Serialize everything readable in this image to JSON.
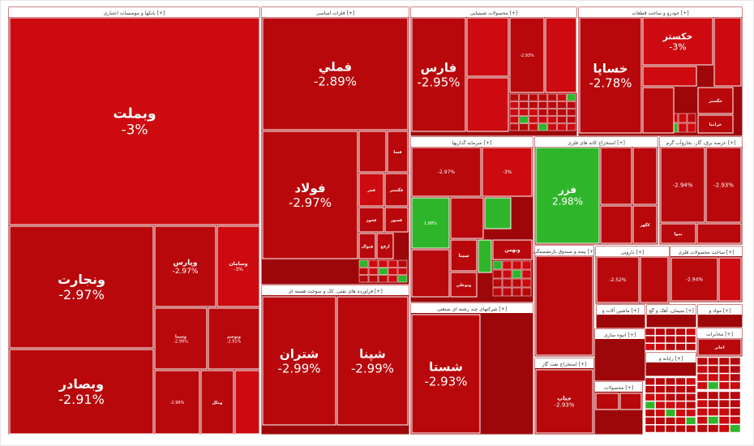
{
  "chart_data": {
    "type": "treemap",
    "colors": {
      "negative": "#cc0a0f",
      "negative_dark": "#b8080c",
      "positive": "#2fb52a",
      "header_bg": "#ffffff",
      "border": "#ffffff"
    },
    "groups": [
      {
        "name": "بانکها و موسسات اعتباری",
        "cells": [
          {
            "label": "وبملت",
            "value": "-3%",
            "change": -3.0
          },
          {
            "label": "ونجارت",
            "value": "-2.97%",
            "change": -2.97
          },
          {
            "label": "وبصادر",
            "value": "-2.91%",
            "change": -2.91
          },
          {
            "label": "وپارس",
            "value": "-2.97%",
            "change": -2.97
          },
          {
            "label": "وسامان",
            "value": "-3%",
            "change": -3.0
          },
          {
            "label": "وسینا",
            "value": "-2.99%",
            "change": -2.99
          },
          {
            "label": "وتوسم",
            "value": "-2.91%",
            "change": -2.91
          },
          {
            "label": "",
            "value": "-2.99%",
            "change": -2.99
          },
          {
            "label": "وملل",
            "value": "",
            "change": -2.9
          },
          {
            "label": "",
            "value": "",
            "change": -2.9
          }
        ]
      },
      {
        "name": "فلزات اساسی",
        "cells": [
          {
            "label": "فملي",
            "value": "-2.89%",
            "change": -2.89
          },
          {
            "label": "فولاد",
            "value": "-2.97%",
            "change": -2.97
          },
          {
            "label": "",
            "value": "",
            "change": -2.9
          },
          {
            "label": "فسا",
            "value": "",
            "change": -2.9
          },
          {
            "label": "فجر",
            "value": "",
            "change": -2.9
          },
          {
            "label": "فگستر",
            "value": "",
            "change": -2.9
          },
          {
            "label": "فخوز",
            "value": "",
            "change": -2.9
          },
          {
            "label": "فسوز",
            "value": "",
            "change": -2.9
          },
          {
            "label": "فنوال",
            "value": "",
            "change": -2.9
          },
          {
            "label": "ارفع",
            "value": "",
            "change": -2.9
          }
        ]
      },
      {
        "name": "فراورده های نفتی، کک و سوخت هسته ای",
        "cells": [
          {
            "label": "شتران",
            "value": "-2.99%",
            "change": -2.99
          },
          {
            "label": "شپنا",
            "value": "-2.99%",
            "change": -2.99
          }
        ]
      },
      {
        "name": "محصولات شیمیایی",
        "cells": [
          {
            "label": "فارس",
            "value": "-2.95%",
            "change": -2.95
          },
          {
            "label": "",
            "value": "",
            "change": -2.9
          },
          {
            "label": "",
            "value": "-2.93%",
            "change": -2.93
          },
          {
            "label": "",
            "value": "",
            "change": -2.9
          },
          {
            "label": "",
            "value": "",
            "change": -2.9
          }
        ]
      },
      {
        "name": "سرمایه گذاریها",
        "cells": [
          {
            "label": "",
            "value": "-2.97%",
            "change": -2.97
          },
          {
            "label": "",
            "value": "-3%",
            "change": -3.0
          },
          {
            "label": "",
            "value": "1.88%",
            "change": 1.88
          },
          {
            "label": "",
            "value": "",
            "change": 1.2
          },
          {
            "label": "",
            "value": "",
            "change": -2.9
          },
          {
            "label": "سیتا",
            "value": "",
            "change": -2.9
          },
          {
            "label": "وبهمن",
            "value": "",
            "change": -2.9
          },
          {
            "label": "",
            "value": "",
            "change": -2.9
          },
          {
            "label": "وبوعلي",
            "value": "",
            "change": -2.9
          },
          {
            "label": "",
            "value": "",
            "change": 1.5
          }
        ]
      },
      {
        "name": "شرکتهای چند رشته ای صنعتی",
        "cells": [
          {
            "label": "شستا",
            "value": "-2.93%",
            "change": -2.93
          }
        ]
      },
      {
        "name": "استخراج کانه های فلزی",
        "cells": [
          {
            "label": "فزر",
            "value": "2.98%",
            "change": 2.98
          },
          {
            "label": "",
            "value": "",
            "change": -2.9
          },
          {
            "label": "",
            "value": "",
            "change": -2.9
          },
          {
            "label": "",
            "value": "",
            "change": -2.9
          },
          {
            "label": "کگهر",
            "value": "",
            "change": -2.9
          }
        ]
      },
      {
        "name": "خودرو و ساخت قطعات",
        "cells": [
          {
            "label": "خساپا",
            "value": "-2.78%",
            "change": -2.78
          },
          {
            "label": "خکستر",
            "value": "-3%",
            "change": -3.0
          },
          {
            "label": "",
            "value": "",
            "change": -2.9
          },
          {
            "label": "خگستر",
            "value": "",
            "change": -2.9
          },
          {
            "label": "خزامیا",
            "value": "",
            "change": -2.9
          },
          {
            "label": "",
            "value": "",
            "change": -2.9
          },
          {
            "label": "",
            "value": "",
            "change": -2.9
          }
        ]
      },
      {
        "name": "عرضه برق، گاز، بخاروآب گرم",
        "cells": [
          {
            "label": "",
            "value": "-2.94%",
            "change": -2.94
          },
          {
            "label": "",
            "value": "-2.93%",
            "change": -2.93
          },
          {
            "label": "بموا",
            "value": "",
            "change": -2.9
          },
          {
            "label": "",
            "value": "",
            "change": -2.9
          }
        ]
      },
      {
        "name": "ساخت محصولات فلزی",
        "cells": [
          {
            "label": "",
            "value": "-2.94%",
            "change": -2.94
          },
          {
            "label": "",
            "value": "",
            "change": -2.9
          }
        ]
      },
      {
        "name": "سیمان، آهک و گچ",
        "cells": []
      },
      {
        "name": "ماشین آلات و",
        "cells": []
      },
      {
        "name": "مواد و",
        "cells": []
      },
      {
        "name": "استخراج نفت گاز",
        "cells": [
          {
            "label": "حتاپ",
            "value": "-2.93%",
            "change": -2.93
          }
        ]
      },
      {
        "name": "محصولات",
        "cells": [
          {
            "label": "",
            "value": "",
            "change": -2.9
          },
          {
            "label": "",
            "value": "",
            "change": -2.9
          }
        ]
      },
      {
        "name": "مخابرات",
        "cells": [
          {
            "label": "اخابر",
            "value": "",
            "change": -2.9
          }
        ]
      },
      {
        "name": "رایانه و",
        "cells": []
      },
      {
        "name": "بیمه و صندوق بازنشستگی",
        "cells": [
          {
            "label": "",
            "value": "",
            "change": -2.9
          }
        ]
      },
      {
        "name": "انبوه سازی",
        "cells": []
      },
      {
        "name": "دارویی",
        "cells": [
          {
            "label": "",
            "value": "-2.52%",
            "change": -2.52
          },
          {
            "label": "",
            "value": "",
            "change": -2.9
          }
        ]
      }
    ]
  }
}
